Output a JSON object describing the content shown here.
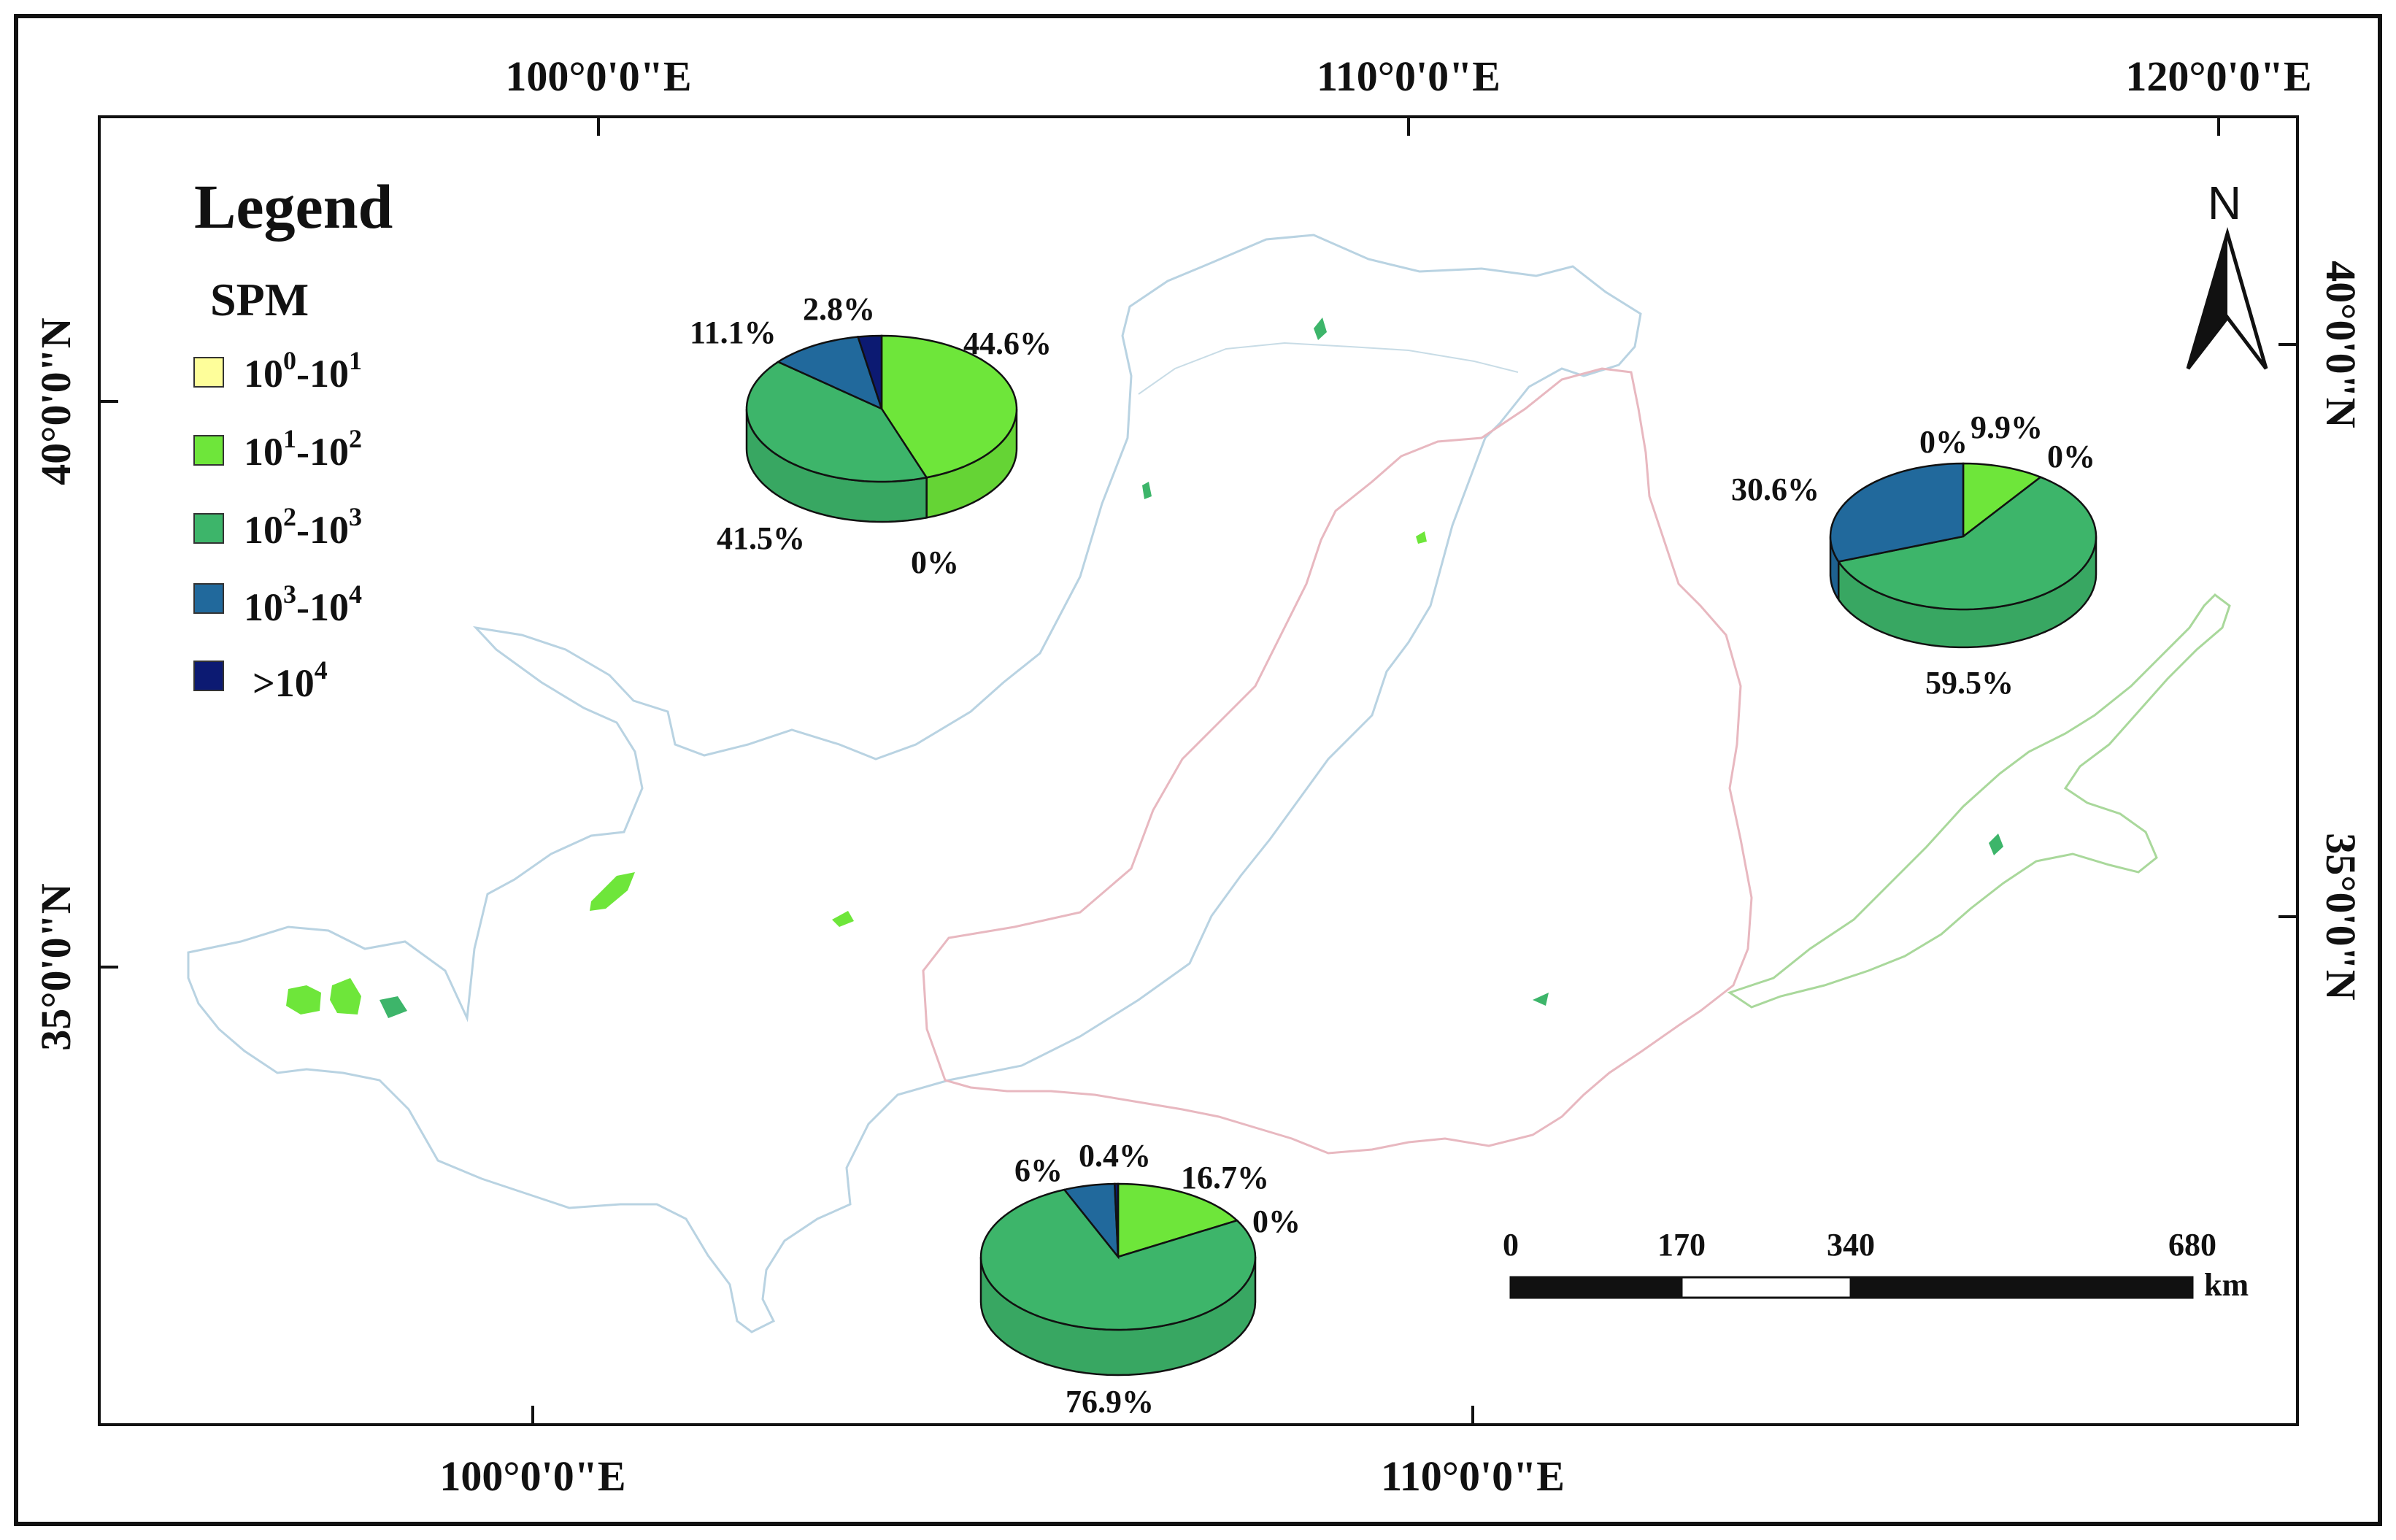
{
  "colors": {
    "c0": "#fefe9a",
    "c1": "#6ee63a",
    "c2": "#3db56a",
    "c3": "#21699c",
    "c4": "#0c1a72",
    "basin_outline_west": "#b9d3e2",
    "basin_outline_middle": "#e8b8c0",
    "basin_outline_east": "#a9d89b"
  },
  "coordinates": {
    "top": [
      "100°0'0\"E",
      "110°0'0\"E",
      "120°0'0\"E"
    ],
    "bottom": [
      "100°0'0\"E",
      "110°0'0\"E"
    ],
    "left": [
      "40°0'0\"N",
      "35°0'0\"N"
    ],
    "right": [
      "40°0'0\"N",
      "35°0'0\"N"
    ]
  },
  "legend": {
    "title": "Legend",
    "subtitle": "SPM",
    "items": [
      {
        "base": "10",
        "exp1": "0",
        "mid": "-10",
        "exp2": "1",
        "color": "#fefe9a"
      },
      {
        "base": "10",
        "exp1": "1",
        "mid": "-10",
        "exp2": "2",
        "color": "#6ee63a"
      },
      {
        "base": "10",
        "exp1": "2",
        "mid": "-10",
        "exp2": "3",
        "color": "#3db56a"
      },
      {
        "base": "10",
        "exp1": "3",
        "mid": "-10",
        "exp2": "4",
        "color": "#21699c"
      },
      {
        "base": ">10",
        "exp1": "4",
        "mid": "",
        "exp2": "",
        "color": "#0c1a72"
      }
    ]
  },
  "north_arrow": {
    "label": "N"
  },
  "scale_bar": {
    "labels": [
      "0",
      "170",
      "340",
      "680"
    ],
    "unit": "km"
  },
  "chart_data": [
    {
      "type": "pie",
      "region": "upper",
      "categories": [
        "10^0-10^1",
        "10^1-10^2",
        "10^2-10^3",
        "10^3-10^4",
        ">10^4"
      ],
      "values": [
        0,
        44.6,
        41.5,
        11.1,
        2.8
      ],
      "labels": [
        "0%",
        "44.6%",
        "41.5%",
        "11.1%",
        "2.8%"
      ]
    },
    {
      "type": "pie",
      "region": "middle",
      "categories": [
        "10^0-10^1",
        "10^1-10^2",
        "10^2-10^3",
        "10^3-10^4",
        ">10^4"
      ],
      "values": [
        0,
        16.7,
        76.9,
        6,
        0.4
      ],
      "labels": [
        "0%",
        "16.7%",
        "76.9%",
        "6%",
        "0.4%"
      ]
    },
    {
      "type": "pie",
      "region": "lower",
      "categories": [
        "10^0-10^1",
        "10^1-10^2",
        "10^2-10^3",
        "10^3-10^4",
        ">10^4"
      ],
      "values": [
        0,
        9.9,
        59.5,
        30.6,
        0
      ],
      "labels": [
        "0%",
        "9.9%",
        "59.5%",
        "30.6%",
        "0%"
      ]
    }
  ]
}
